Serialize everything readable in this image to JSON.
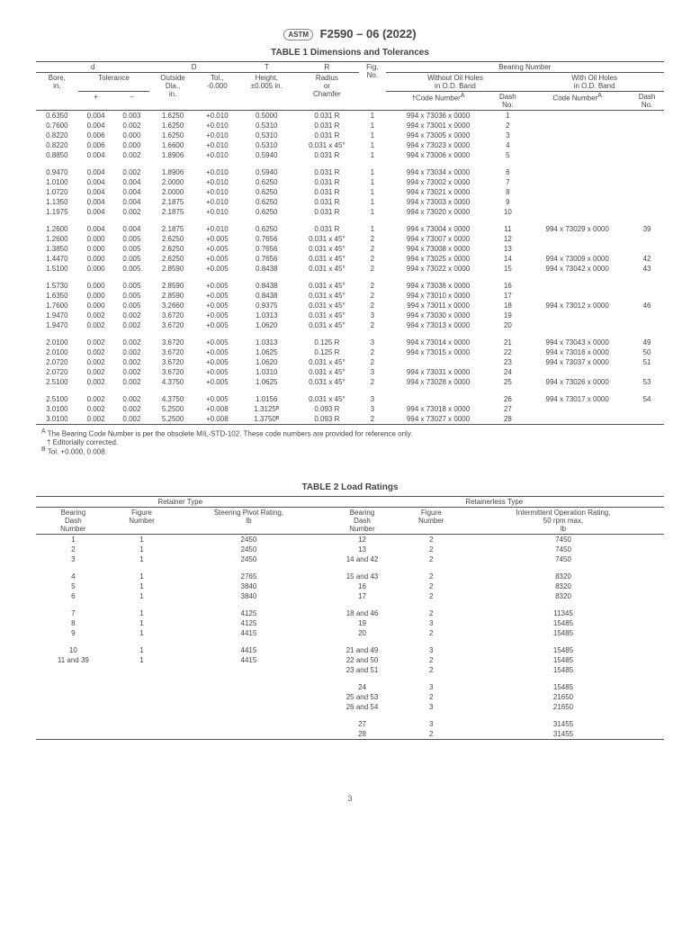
{
  "docTitle": "F2590 – 06 (2022)",
  "t1": {
    "title": "TABLE 1 Dimensions and Tolerances",
    "h": {
      "d": "d",
      "D": "D",
      "T": "T",
      "R": "R",
      "bn": "Bearing Number",
      "bore": "Bore,\nin.",
      "tol": "Tolerance",
      "plus": "+",
      "minus": "−",
      "od": "Outside\nDia.,\nin.",
      "tol2": "Tol.,\n-0.000",
      "ht": "Height,\n±0.005 in.",
      "rc": "Radius\nor\nChamfer",
      "fig": "Fig.\nNo.",
      "wo": "Without Oil Holes\nin O.D. Band",
      "wi": "With Oil Holes\nin O.D. Band",
      "cn": "†Code Number",
      "cn2": "Code Number",
      "dn": "Dash\nNo."
    },
    "rows": [
      [
        "0.6350",
        "0.004",
        "0.003",
        "1.6250",
        "+0.010",
        "0.5000",
        "0.031 R",
        "1",
        "994 x 73036 x 0000",
        "1",
        "",
        ""
      ],
      [
        "0.7600",
        "0.004",
        "0.002",
        "1.6250",
        "+0.010",
        "0.5310",
        "0.031 R",
        "1",
        "994 x 73001 x 0000",
        "2",
        "",
        ""
      ],
      [
        "0.8220",
        "0.006",
        "0.000",
        "1.6250",
        "+0.010",
        "0.5310",
        "0.031 R",
        "1",
        "994 x 73005 x 0000",
        "3",
        "",
        ""
      ],
      [
        "0.8220",
        "0.006",
        "0.000",
        "1.6600",
        "+0.010",
        "0.5310",
        "0.031 x 45°",
        "1",
        "994 x 73023 x 0000",
        "4",
        "",
        ""
      ],
      [
        "0.8850",
        "0.004",
        "0.002",
        "1.8906",
        "+0.010",
        "0.5940",
        "0.031 R",
        "1",
        "994 x 73006 x 0000",
        "5",
        "",
        ""
      ],
      [],
      [
        "0.9470",
        "0.004",
        "0.002",
        "1.8906",
        "+0.010",
        "0.5940",
        "0.031 R",
        "1",
        "994 x 73034 x 0000",
        "6",
        "",
        ""
      ],
      [
        "1.0100",
        "0.004",
        "0.004",
        "2.0000",
        "+0.010",
        "0.6250",
        "0.031 R",
        "1",
        "994 x 73002 x 0000",
        "7",
        "",
        ""
      ],
      [
        "1.0720",
        "0.004",
        "0.004",
        "2.0000",
        "+0.010",
        "0.6250",
        "0.031 R",
        "1",
        "994 x 73021 x 0000",
        "8",
        "",
        ""
      ],
      [
        "1.1350",
        "0.004",
        "0.004",
        "2.1875",
        "+0.010",
        "0.6250",
        "0.031 R",
        "1",
        "994 x 73003 x 0000",
        "9",
        "",
        ""
      ],
      [
        "1.1975",
        "0.004",
        "0.002",
        "2.1875",
        "+0.010",
        "0.6250",
        "0.031 R",
        "1",
        "994 x 73020 x 0000",
        "10",
        "",
        ""
      ],
      [],
      [
        "1.2600",
        "0.004",
        "0.004",
        "2.1875",
        "+0.010",
        "0.6250",
        "0.031 R",
        "1",
        "994 x 73004 x 0000",
        "11",
        "994 x 73029 x 0000",
        "39"
      ],
      [
        "1.2600",
        "0.000",
        "0.005",
        "2.6250",
        "+0.005",
        "0.7656",
        "0.031 x 45°",
        "2",
        "994 x 73007 x 0000",
        "12",
        "",
        ""
      ],
      [
        "1.3850",
        "0.000",
        "0.005",
        "2.6250",
        "+0.005",
        "0.7656",
        "0.031 x 45°",
        "2",
        "994 x 73008 x 0000",
        "13",
        "",
        ""
      ],
      [
        "1.4470",
        "0.000",
        "0.005",
        "2.6250",
        "+0.005",
        "0.7656",
        "0.031 x 45°",
        "2",
        "994 x 73025 x 0000",
        "14",
        "994 x 73009 x 0000",
        "42"
      ],
      [
        "1.5100",
        "0.000",
        "0.005",
        "2.8590",
        "+0.005",
        "0.8438",
        "0.031 x 45°",
        "2",
        "994 x 73022 x 0000",
        "15",
        "994 x 73042 x 0000",
        "43"
      ],
      [],
      [
        "1.5730",
        "0.000",
        "0.005",
        "2.8590",
        "+0.005",
        "0.8438",
        "0.031 x 45°",
        "2",
        "994 x 73036 x 0000",
        "16",
        "",
        ""
      ],
      [
        "1.6350",
        "0.000",
        "0.005",
        "2.8590",
        "+0.005",
        "0.8438",
        "0.031 x 45°",
        "2",
        "994 x 73010 x 0000",
        "17",
        "",
        ""
      ],
      [
        "1.7600",
        "0.000",
        "0.005",
        "3.2660",
        "+0.005",
        "0.9375",
        "0.031 x 45°",
        "2",
        "994 x 73011 x 0000",
        "18",
        "994 x 73012 x 0000",
        "46"
      ],
      [
        "1.9470",
        "0.002",
        "0.002",
        "3.6720",
        "+0.005",
        "1.0313",
        "0.031 x 45°",
        "3",
        "994 x 73030 x 0000",
        "19",
        "",
        ""
      ],
      [
        "1.9470",
        "0.002",
        "0.002",
        "3.6720",
        "+0.005",
        "1.0620",
        "0.031 x 45°",
        "2",
        "994 x 73013 x 0000",
        "20",
        "",
        ""
      ],
      [],
      [
        "2.0100",
        "0.002",
        "0.002",
        "3.6720",
        "+0.005",
        "1.0313",
        "0.125 R",
        "3",
        "994 x 73014 x 0000",
        "21",
        "994 x 73043 x 0000",
        "49"
      ],
      [
        "2.0100",
        "0.002",
        "0.002",
        "3.6720",
        "+0.005",
        "1.0625",
        "0.125 R",
        "2",
        "994 x 73015 x 0000",
        "22",
        "994 x 73016 x 0000",
        "50"
      ],
      [
        "2.0720",
        "0.002",
        "0.002",
        "3.6720",
        "+0.005",
        "1.0620",
        "0.031 x 45°",
        "2",
        "",
        "23",
        "994 x 73037 x 0000",
        "51"
      ],
      [
        "2.0720",
        "0.002",
        "0.002",
        "3.6720",
        "+0.005",
        "1.0310",
        "0.031 x 45°",
        "3",
        "994 x 73031 x 0000",
        "24",
        "",
        ""
      ],
      [
        "2.5100",
        "0.002",
        "0.002",
        "4.3750",
        "+0.005",
        "1.0625",
        "0.031 x 45°",
        "2",
        "994 x 73028 x 0000",
        "25",
        "994 x 73026 x 0000",
        "53"
      ],
      [],
      [
        "2.5100",
        "0.002",
        "0.002",
        "4.3750",
        "+0.005",
        "1.0156",
        "0.031 x 45°",
        "3",
        "",
        "26",
        "994 x 73017 x 0000",
        "54"
      ],
      [
        "3.0100",
        "0.002",
        "0.002",
        "5.2500",
        "+0.008",
        "1.3125ᴮ",
        "0.093 R",
        "3",
        "994 x 73018 x 0000",
        "27",
        "",
        ""
      ],
      [
        "3.0100",
        "0.002",
        "0.002",
        "5.2500",
        "+0.008",
        "1.3750ᴮ",
        "0.093 R",
        "2",
        "994 x 73027 x 0000",
        "28",
        "",
        ""
      ]
    ],
    "nA": "The Bearing Code Number is per the obsolete MIL-STD-102. These code numbers are provided for reference only.",
    "nB": "† Editorially corrected.",
    "nC": "Tol. +0.000, 0.008."
  },
  "t2": {
    "title": "TABLE 2 Load Ratings",
    "h": {
      "rt": "Retainer Type",
      "rl": "Retainerless Type",
      "bdn": "Bearing\nDash\nNumber",
      "fn": "Figure\nNumber",
      "spr": "Steering Pivot Rating,\nlb",
      "ior": "Intermittent Operation Rating,\n50 rpm max,\nlb"
    },
    "rows": [
      [
        "1",
        "1",
        "2450",
        "12",
        "2",
        "7450"
      ],
      [
        "2",
        "1",
        "2450",
        "13",
        "2",
        "7450"
      ],
      [
        "3",
        "1",
        "2450",
        "14 and 42",
        "2",
        "7450"
      ],
      [],
      [
        "4",
        "1",
        "2765",
        "15 and 43",
        "2",
        "8320"
      ],
      [
        "5",
        "1",
        "3840",
        "16",
        "2",
        "8320"
      ],
      [
        "6",
        "1",
        "3840",
        "17",
        "2",
        "8320"
      ],
      [],
      [
        "7",
        "1",
        "4125",
        "18 and 46",
        "2",
        "11345"
      ],
      [
        "8",
        "1",
        "4125",
        "19",
        "3",
        "15485"
      ],
      [
        "9",
        "1",
        "4415",
        "20",
        "2",
        "15485"
      ],
      [],
      [
        "10",
        "1",
        "4415",
        "21 and 49",
        "3",
        "15485"
      ],
      [
        "11 and 39",
        "1",
        "4415",
        "22 and 50",
        "2",
        "15485"
      ],
      [
        "",
        "",
        "",
        "23 and 51",
        "2",
        "15485"
      ],
      [],
      [
        "",
        "",
        "",
        "24",
        "3",
        "15485"
      ],
      [
        "",
        "",
        "",
        "25 and 53",
        "2",
        "21650"
      ],
      [
        "",
        "",
        "",
        "26 and 54",
        "3",
        "21650"
      ],
      [],
      [
        "",
        "",
        "",
        "27",
        "3",
        "31455"
      ],
      [
        "",
        "",
        "",
        "28",
        "2",
        "31455"
      ]
    ]
  },
  "page": "3"
}
